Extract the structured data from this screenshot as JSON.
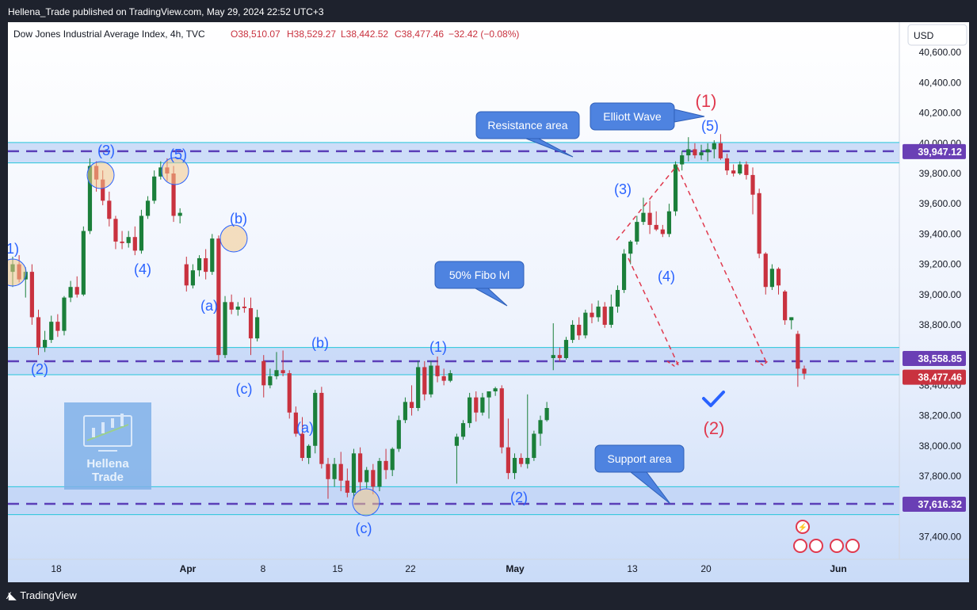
{
  "header": {
    "published": "Hellena_Trade published on TradingView.com, May 29, 2024 22:52 UTC+3"
  },
  "legend": {
    "symbol": "Dow Jones Industrial Average Index, 4h, TVC",
    "open": "O38,510.07",
    "high": "H38,529.27",
    "low": "L38,442.52",
    "close": "C38,477.46",
    "change": "−32.42 (−0.08%)"
  },
  "currency": "USD",
  "footer": {
    "brand": "TradingView"
  },
  "watermark": {
    "line1": "Hellena",
    "line2": "Trade"
  },
  "colors": {
    "up": "#1b7f3a",
    "down": "#c9323f",
    "wave_label": "#2962ff",
    "major_wave": "#e0394e",
    "zone": "#bfd3f5",
    "zone_border": "#26c6da",
    "level_line": "#5b3fb8",
    "callout": "#4e83e0",
    "price_tag": "#6a3fb5",
    "last_price_tag": "#c9323f"
  },
  "chart_data": {
    "type": "candlestick",
    "title": "Dow Jones Industrial Average Index, 4h, TVC",
    "ylim": [
      37250,
      40800
    ],
    "y_ticks": [
      "40,600.00",
      "40,400.00",
      "40,200.00",
      "40,000.00",
      "39,800.00",
      "39,600.00",
      "39,400.00",
      "39,200.00",
      "39,000.00",
      "38,800.00",
      "38,400.00",
      "38,200.00",
      "38,000.00",
      "37,800.00",
      "37,400.00"
    ],
    "x_ticks": [
      "18",
      "Apr",
      "8",
      "15",
      "22",
      "May",
      "13",
      "20",
      "Jun"
    ],
    "zones": [
      {
        "label": "Resistance area",
        "low": 39870,
        "high": 40005
      },
      {
        "label": "50% Fibo lvl",
        "low": 38470,
        "high": 38650
      },
      {
        "label": "Support area",
        "low": 37545,
        "high": 37730
      }
    ],
    "levels": [
      {
        "value": 39947.12,
        "label": "39,947.12",
        "tag": "level"
      },
      {
        "value": 38558.85,
        "label": "38,558.85",
        "tag": "level"
      },
      {
        "value": 38477.46,
        "label": "38,477.46",
        "tag": "last"
      },
      {
        "value": 37616.32,
        "label": "37,616.32",
        "tag": "level"
      }
    ],
    "callouts": [
      {
        "text": "Resistance area"
      },
      {
        "text": "Elliott Wave"
      },
      {
        "text": "50% Fibo lvl"
      },
      {
        "text": "Support area"
      }
    ],
    "wave_labels": [
      {
        "text": "1)",
        "kind": "minor"
      },
      {
        "text": "(2)",
        "kind": "minor"
      },
      {
        "text": "(3)",
        "kind": "minor"
      },
      {
        "text": "(4)",
        "kind": "minor"
      },
      {
        "text": "(5)",
        "kind": "minor"
      },
      {
        "text": "(a)",
        "kind": "minor"
      },
      {
        "text": "(b)",
        "kind": "minor"
      },
      {
        "text": "(c)",
        "kind": "minor"
      },
      {
        "text": "(b)",
        "kind": "minor"
      },
      {
        "text": "(a)",
        "kind": "minor"
      },
      {
        "text": "(c)",
        "kind": "minor"
      },
      {
        "text": "(1)",
        "kind": "minor"
      },
      {
        "text": "(2)",
        "kind": "minor"
      },
      {
        "text": "(3)",
        "kind": "minor"
      },
      {
        "text": "(4)",
        "kind": "minor"
      },
      {
        "text": "(5)",
        "kind": "minor"
      },
      {
        "text": "(1)",
        "kind": "major"
      },
      {
        "text": "(2)",
        "kind": "major"
      }
    ],
    "candles": [
      {
        "o": 39150,
        "h": 39250,
        "l": 39050,
        "c": 39200
      },
      {
        "o": 39200,
        "h": 39260,
        "l": 39080,
        "c": 39100
      },
      {
        "o": 39100,
        "h": 39180,
        "l": 38980,
        "c": 39150
      },
      {
        "o": 39150,
        "h": 39200,
        "l": 38800,
        "c": 38850
      },
      {
        "o": 38850,
        "h": 38900,
        "l": 38600,
        "c": 38650
      },
      {
        "o": 38650,
        "h": 38760,
        "l": 38620,
        "c": 38700
      },
      {
        "o": 38700,
        "h": 38860,
        "l": 38680,
        "c": 38820
      },
      {
        "o": 38820,
        "h": 38870,
        "l": 38720,
        "c": 38760
      },
      {
        "o": 38760,
        "h": 38990,
        "l": 38730,
        "c": 38980
      },
      {
        "o": 38980,
        "h": 39090,
        "l": 38950,
        "c": 39050
      },
      {
        "o": 39050,
        "h": 39120,
        "l": 38980,
        "c": 39000
      },
      {
        "o": 39000,
        "h": 39450,
        "l": 38990,
        "c": 39420
      },
      {
        "o": 39420,
        "h": 39900,
        "l": 39400,
        "c": 39850
      },
      {
        "o": 39850,
        "h": 39880,
        "l": 39680,
        "c": 39760
      },
      {
        "o": 39760,
        "h": 39820,
        "l": 39590,
        "c": 39620
      },
      {
        "o": 39620,
        "h": 39680,
        "l": 39450,
        "c": 39500
      },
      {
        "o": 39500,
        "h": 39520,
        "l": 39300,
        "c": 39350
      },
      {
        "o": 39350,
        "h": 39420,
        "l": 39300,
        "c": 39340
      },
      {
        "o": 39340,
        "h": 39420,
        "l": 39310,
        "c": 39380
      },
      {
        "o": 39380,
        "h": 39450,
        "l": 39260,
        "c": 39290
      },
      {
        "o": 39290,
        "h": 39560,
        "l": 39270,
        "c": 39520
      },
      {
        "o": 39520,
        "h": 39650,
        "l": 39500,
        "c": 39620
      },
      {
        "o": 39620,
        "h": 39820,
        "l": 39600,
        "c": 39780
      },
      {
        "o": 39780,
        "h": 39880,
        "l": 39760,
        "c": 39840
      },
      {
        "o": 39840,
        "h": 39900,
        "l": 39750,
        "c": 39800
      },
      {
        "o": 39800,
        "h": 39850,
        "l": 39480,
        "c": 39520
      },
      {
        "o": 39520,
        "h": 39570,
        "l": 39470,
        "c": 39540
      },
      {
        "o": 39200,
        "h": 39250,
        "l": 39020,
        "c": 39060
      },
      {
        "o": 39060,
        "h": 39200,
        "l": 39040,
        "c": 39160
      },
      {
        "o": 39160,
        "h": 39260,
        "l": 39120,
        "c": 39240
      },
      {
        "o": 39240,
        "h": 39300,
        "l": 39100,
        "c": 39150
      },
      {
        "o": 39150,
        "h": 39400,
        "l": 39130,
        "c": 39370
      },
      {
        "o": 39370,
        "h": 39390,
        "l": 38560,
        "c": 38600
      },
      {
        "o": 38600,
        "h": 38990,
        "l": 38580,
        "c": 38950
      },
      {
        "o": 38950,
        "h": 39000,
        "l": 38870,
        "c": 38900
      },
      {
        "o": 38900,
        "h": 38950,
        "l": 38860,
        "c": 38920
      },
      {
        "o": 38920,
        "h": 38980,
        "l": 38880,
        "c": 38910
      },
      {
        "o": 38910,
        "h": 38980,
        "l": 38600,
        "c": 38710
      },
      {
        "o": 38710,
        "h": 38900,
        "l": 38690,
        "c": 38850
      },
      {
        "o": 38560,
        "h": 38600,
        "l": 38320,
        "c": 38400
      },
      {
        "o": 38400,
        "h": 38510,
        "l": 38380,
        "c": 38460
      },
      {
        "o": 38460,
        "h": 38620,
        "l": 38440,
        "c": 38500
      },
      {
        "o": 38500,
        "h": 38630,
        "l": 38460,
        "c": 38480
      },
      {
        "o": 38480,
        "h": 38500,
        "l": 38180,
        "c": 38220
      },
      {
        "o": 38220,
        "h": 38260,
        "l": 38060,
        "c": 38080
      },
      {
        "o": 38080,
        "h": 38190,
        "l": 37900,
        "c": 37920
      },
      {
        "o": 37920,
        "h": 38010,
        "l": 37880,
        "c": 38000
      },
      {
        "o": 38000,
        "h": 38370,
        "l": 37950,
        "c": 38350
      },
      {
        "o": 38350,
        "h": 38390,
        "l": 37850,
        "c": 37880
      },
      {
        "o": 37880,
        "h": 37920,
        "l": 37650,
        "c": 37780
      },
      {
        "o": 37780,
        "h": 37920,
        "l": 37730,
        "c": 37880
      },
      {
        "o": 37880,
        "h": 37960,
        "l": 37700,
        "c": 37770
      },
      {
        "o": 37770,
        "h": 37850,
        "l": 37660,
        "c": 37690
      },
      {
        "o": 37690,
        "h": 37980,
        "l": 37650,
        "c": 37950
      },
      {
        "o": 37950,
        "h": 37990,
        "l": 37700,
        "c": 37760
      },
      {
        "o": 37760,
        "h": 37860,
        "l": 37720,
        "c": 37840
      },
      {
        "o": 37840,
        "h": 37880,
        "l": 37680,
        "c": 37730
      },
      {
        "o": 37730,
        "h": 37920,
        "l": 37700,
        "c": 37900
      },
      {
        "o": 37900,
        "h": 37980,
        "l": 37780,
        "c": 37840
      },
      {
        "o": 37840,
        "h": 37990,
        "l": 37800,
        "c": 37980
      },
      {
        "o": 37980,
        "h": 38200,
        "l": 37960,
        "c": 38170
      },
      {
        "o": 38170,
        "h": 38320,
        "l": 38150,
        "c": 38290
      },
      {
        "o": 38290,
        "h": 38400,
        "l": 38200,
        "c": 38250
      },
      {
        "o": 38250,
        "h": 38560,
        "l": 38230,
        "c": 38520
      },
      {
        "o": 38520,
        "h": 38560,
        "l": 38300,
        "c": 38340
      },
      {
        "o": 38340,
        "h": 38560,
        "l": 38320,
        "c": 38530
      },
      {
        "o": 38530,
        "h": 38590,
        "l": 38420,
        "c": 38460
      },
      {
        "o": 38460,
        "h": 38510,
        "l": 38400,
        "c": 38430
      },
      {
        "o": 38430,
        "h": 38500,
        "l": 38420,
        "c": 38480
      },
      {
        "o": 38000,
        "h": 38080,
        "l": 37750,
        "c": 38060
      },
      {
        "o": 38060,
        "h": 38170,
        "l": 38040,
        "c": 38150
      },
      {
        "o": 38150,
        "h": 38350,
        "l": 38120,
        "c": 38320
      },
      {
        "o": 38320,
        "h": 38360,
        "l": 38160,
        "c": 38220
      },
      {
        "o": 38220,
        "h": 38350,
        "l": 38200,
        "c": 38320
      },
      {
        "o": 38320,
        "h": 38360,
        "l": 38180,
        "c": 38360
      },
      {
        "o": 38360,
        "h": 38390,
        "l": 38330,
        "c": 38380
      },
      {
        "o": 38380,
        "h": 38400,
        "l": 37950,
        "c": 37990
      },
      {
        "o": 37990,
        "h": 38180,
        "l": 37780,
        "c": 37820
      },
      {
        "o": 37820,
        "h": 37950,
        "l": 37780,
        "c": 37920
      },
      {
        "o": 37920,
        "h": 37950,
        "l": 37860,
        "c": 37880
      },
      {
        "o": 37880,
        "h": 38340,
        "l": 37850,
        "c": 37920
      },
      {
        "o": 37920,
        "h": 38100,
        "l": 37900,
        "c": 38080
      },
      {
        "o": 38080,
        "h": 38200,
        "l": 38000,
        "c": 38170
      },
      {
        "o": 38170,
        "h": 38290,
        "l": 38160,
        "c": 38250
      },
      {
        "o": 38580,
        "h": 38810,
        "l": 38500,
        "c": 38600
      },
      {
        "o": 38600,
        "h": 38650,
        "l": 38560,
        "c": 38580
      },
      {
        "o": 38580,
        "h": 38720,
        "l": 38570,
        "c": 38700
      },
      {
        "o": 38700,
        "h": 38830,
        "l": 38680,
        "c": 38800
      },
      {
        "o": 38800,
        "h": 38850,
        "l": 38700,
        "c": 38730
      },
      {
        "o": 38730,
        "h": 38900,
        "l": 38710,
        "c": 38880
      },
      {
        "o": 38880,
        "h": 38940,
        "l": 38810,
        "c": 38850
      },
      {
        "o": 38850,
        "h": 38960,
        "l": 38820,
        "c": 38920
      },
      {
        "o": 38920,
        "h": 38950,
        "l": 38780,
        "c": 38800
      },
      {
        "o": 38800,
        "h": 39000,
        "l": 38780,
        "c": 38920
      },
      {
        "o": 38920,
        "h": 39060,
        "l": 38880,
        "c": 39030
      },
      {
        "o": 39030,
        "h": 39300,
        "l": 39010,
        "c": 39270
      },
      {
        "o": 39270,
        "h": 39360,
        "l": 39200,
        "c": 39350
      },
      {
        "o": 39350,
        "h": 39520,
        "l": 39330,
        "c": 39480
      },
      {
        "o": 39480,
        "h": 39640,
        "l": 39460,
        "c": 39540
      },
      {
        "o": 39540,
        "h": 39620,
        "l": 39400,
        "c": 39460
      },
      {
        "o": 39460,
        "h": 39550,
        "l": 39420,
        "c": 39430
      },
      {
        "o": 39430,
        "h": 39460,
        "l": 39380,
        "c": 39400
      },
      {
        "o": 39400,
        "h": 39600,
        "l": 39380,
        "c": 39550
      },
      {
        "o": 39550,
        "h": 39880,
        "l": 39520,
        "c": 39860
      },
      {
        "o": 39860,
        "h": 39950,
        "l": 39820,
        "c": 39920
      },
      {
        "o": 39920,
        "h": 40040,
        "l": 39880,
        "c": 39960
      },
      {
        "o": 39960,
        "h": 40000,
        "l": 39900,
        "c": 39920
      },
      {
        "o": 39920,
        "h": 39990,
        "l": 39890,
        "c": 39940
      },
      {
        "o": 39940,
        "h": 40000,
        "l": 39880,
        "c": 39960
      },
      {
        "o": 39960,
        "h": 40020,
        "l": 39900,
        "c": 40000
      },
      {
        "o": 40000,
        "h": 40060,
        "l": 39890,
        "c": 39900
      },
      {
        "o": 39900,
        "h": 39930,
        "l": 39790,
        "c": 39820
      },
      {
        "o": 39820,
        "h": 39860,
        "l": 39780,
        "c": 39800
      },
      {
        "o": 39800,
        "h": 39880,
        "l": 39790,
        "c": 39860
      },
      {
        "o": 39860,
        "h": 39880,
        "l": 39760,
        "c": 39790
      },
      {
        "o": 39790,
        "h": 39840,
        "l": 39530,
        "c": 39660
      },
      {
        "o": 39670,
        "h": 39700,
        "l": 39240,
        "c": 39270
      },
      {
        "o": 39270,
        "h": 39280,
        "l": 39000,
        "c": 39050
      },
      {
        "o": 39050,
        "h": 39200,
        "l": 39030,
        "c": 39170
      },
      {
        "o": 39170,
        "h": 39180,
        "l": 39000,
        "c": 39060
      },
      {
        "o": 39020,
        "h": 39030,
        "l": 38800,
        "c": 38830
      },
      {
        "o": 38830,
        "h": 38850,
        "l": 38770,
        "c": 38850
      },
      {
        "o": 38740,
        "h": 38760,
        "l": 38390,
        "c": 38510
      },
      {
        "o": 38510,
        "h": 38530,
        "l": 38440,
        "c": 38477
      }
    ]
  }
}
